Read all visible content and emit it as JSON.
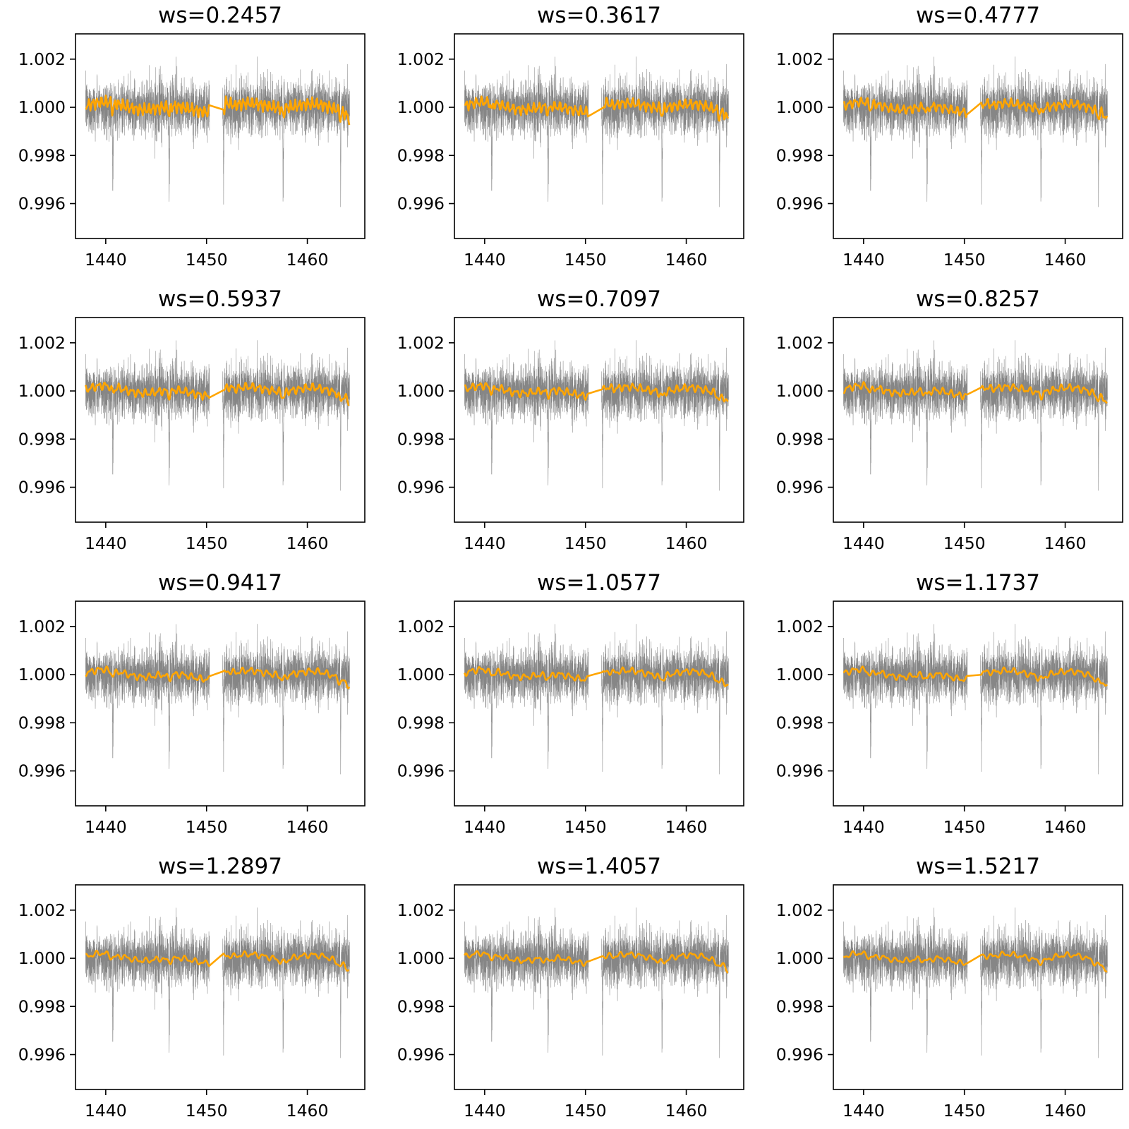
{
  "figure": {
    "layout": "4 rows x 3 columns"
  },
  "colors": {
    "data": "#222222",
    "data_light": "#999999",
    "trend": "#ffa500",
    "axes": "#000000"
  },
  "chart_data": {
    "type": "line",
    "xlim": [
      1437,
      1465.7
    ],
    "ylim": [
      0.99455,
      1.00305
    ],
    "xticks": [
      1440,
      1450,
      1460
    ],
    "xtick_labels": [
      "1440",
      "1450",
      "1460"
    ],
    "yticks": [
      0.996,
      0.998,
      1.0,
      1.002
    ],
    "ytick_labels": [
      "0.996",
      "0.998",
      "1.000",
      "1.002"
    ],
    "observations": {
      "segments": [
        [
          1438.0,
          1450.3
        ],
        [
          1451.6,
          1464.2
        ]
      ],
      "noise_sigma": 0.00055,
      "transits": [
        {
          "time": 1440.7,
          "depth": 0.0048
        },
        {
          "time": 1446.3,
          "depth": 0.0042
        },
        {
          "time": 1451.7,
          "depth": 0.004
        },
        {
          "time": 1457.6,
          "depth": 0.0048
        },
        {
          "time": 1463.3,
          "depth": 0.0036
        }
      ]
    },
    "panels": [
      {
        "title": "ws=0.2457",
        "window": 0.2457
      },
      {
        "title": "ws=0.3617",
        "window": 0.3617
      },
      {
        "title": "ws=0.4777",
        "window": 0.4777
      },
      {
        "title": "ws=0.5937",
        "window": 0.5937
      },
      {
        "title": "ws=0.7097",
        "window": 0.7097
      },
      {
        "title": "ws=0.8257",
        "window": 0.8257
      },
      {
        "title": "ws=0.9417",
        "window": 0.9417
      },
      {
        "title": "ws=1.0577",
        "window": 1.0577
      },
      {
        "title": "ws=1.1737",
        "window": 1.1737
      },
      {
        "title": "ws=1.2897",
        "window": 1.2897
      },
      {
        "title": "ws=1.4057",
        "window": 1.4057
      },
      {
        "title": "ws=1.5217",
        "window": 1.5217
      }
    ]
  }
}
